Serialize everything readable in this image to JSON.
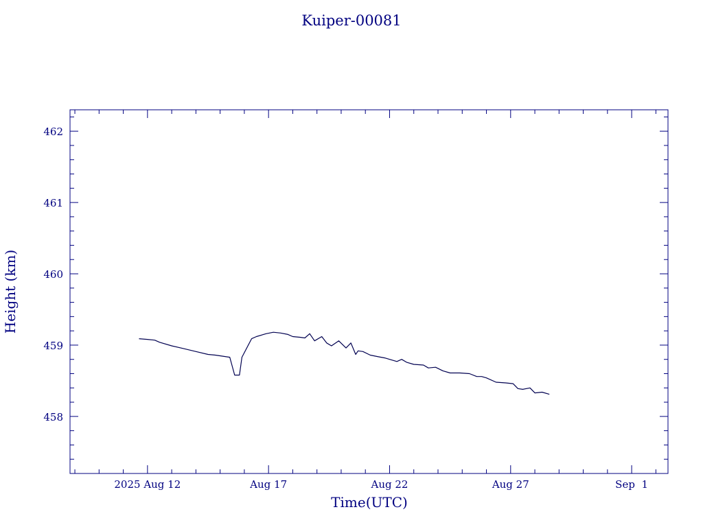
{
  "chart_data": {
    "type": "line",
    "title": "Kuiper-00081",
    "xlabel": "Time(UTC)",
    "ylabel": "Height (km)",
    "x_unit": "date (UTC, 2025)",
    "xlim": [
      "2025-08-08T19:12",
      "2025-09-02T12:00"
    ],
    "ylim": [
      457.2,
      462.3
    ],
    "x_ticks": [
      {
        "date": "2025-08-12",
        "label": "2025 Aug 12"
      },
      {
        "date": "2025-08-17",
        "label": "Aug 17"
      },
      {
        "date": "2025-08-22",
        "label": "Aug 22"
      },
      {
        "date": "2025-08-27",
        "label": "Aug 27"
      },
      {
        "date": "2025-09-01",
        "label": "Sep  1"
      }
    ],
    "y_ticks": [
      458,
      459,
      460,
      461,
      462
    ],
    "grid": false,
    "line_color": "#000050",
    "axis_color": "#000080",
    "series": [
      {
        "x": [
          "2025-08-11T15:36",
          "2025-08-12T00:00",
          "2025-08-12T07:12",
          "2025-08-12T12:00",
          "2025-08-13T00:00",
          "2025-08-13T12:00",
          "2025-08-14T00:00",
          "2025-08-14T12:00",
          "2025-08-14T19:12",
          "2025-08-15T09:36",
          "2025-08-15T14:24",
          "2025-08-15T19:12",
          "2025-08-15T21:36",
          "2025-08-16T07:12",
          "2025-08-16T12:00",
          "2025-08-16T21:36",
          "2025-08-17T04:48",
          "2025-08-17T12:00",
          "2025-08-17T19:12",
          "2025-08-18T00:00",
          "2025-08-18T07:12",
          "2025-08-18T12:00",
          "2025-08-18T16:48",
          "2025-08-18T21:36",
          "2025-08-19T04:48",
          "2025-08-19T09:36",
          "2025-08-19T14:24",
          "2025-08-19T21:36",
          "2025-08-20T04:48",
          "2025-08-20T09:36",
          "2025-08-20T14:24",
          "2025-08-20T16:48",
          "2025-08-20T21:36",
          "2025-08-21T04:48",
          "2025-08-21T12:00",
          "2025-08-21T19:12",
          "2025-08-22T00:00",
          "2025-08-22T07:12",
          "2025-08-22T12:00",
          "2025-08-22T16:48",
          "2025-08-23T00:00",
          "2025-08-23T09:36",
          "2025-08-23T14:24",
          "2025-08-23T21:36",
          "2025-08-24T04:48",
          "2025-08-24T12:00",
          "2025-08-24T21:36",
          "2025-08-25T07:12",
          "2025-08-25T14:24",
          "2025-08-25T19:12",
          "2025-08-26T00:00",
          "2025-08-26T09:36",
          "2025-08-26T19:12",
          "2025-08-27T02:24",
          "2025-08-27T07:12",
          "2025-08-27T12:00",
          "2025-08-27T19:12",
          "2025-08-28T00:00",
          "2025-08-28T07:12",
          "2025-08-28T14:24"
        ],
        "y": [
          459.09,
          459.08,
          459.07,
          459.04,
          458.99,
          458.95,
          458.91,
          458.87,
          458.86,
          458.83,
          458.58,
          458.58,
          458.83,
          459.09,
          459.12,
          459.16,
          459.18,
          459.17,
          459.15,
          459.12,
          459.11,
          459.1,
          459.16,
          459.06,
          459.12,
          459.03,
          458.99,
          459.06,
          458.96,
          459.03,
          458.87,
          458.92,
          458.91,
          458.86,
          458.84,
          458.82,
          458.8,
          458.77,
          458.8,
          458.76,
          458.73,
          458.72,
          458.68,
          458.69,
          458.64,
          458.61,
          458.61,
          458.6,
          458.56,
          458.56,
          458.54,
          458.48,
          458.47,
          458.46,
          458.39,
          458.38,
          458.4,
          458.33,
          458.34,
          458.31
        ]
      }
    ]
  }
}
